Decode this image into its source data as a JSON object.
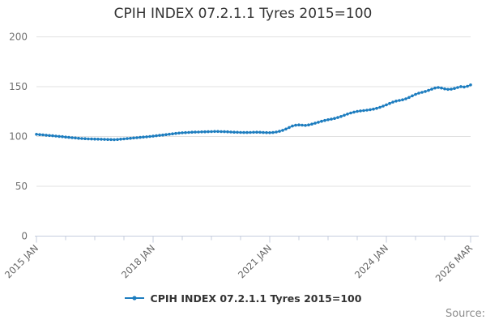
{
  "title": "CPIH INDEX 07.2.1.1 Tyres 2015=100",
  "legend": {
    "label": "CPIH INDEX 07.2.1.1 Tyres 2015=100"
  },
  "source_label": "Source:",
  "colors": {
    "line": "#1d7dbf",
    "grid": "#e0e0e0",
    "axis": "#c5cede",
    "y_tick_label": "#707070",
    "x_tick_label": "#666666",
    "title_text": "#333333",
    "source_text": "#8c8c8c"
  },
  "chart_data": {
    "type": "line",
    "title": "CPIH INDEX 07.2.1.1 Tyres 2015=100",
    "frequency": "monthly",
    "x_start": "2015 JAN",
    "x_end": "2026 MAR",
    "ylim": [
      0,
      200
    ],
    "y_ticks": [
      0,
      50,
      100,
      150,
      200
    ],
    "grid": true,
    "legend_position": "bottom",
    "marker": "dot",
    "x_tick_labels": [
      "2015 JAN",
      "2018 JAN",
      "2021 JAN",
      "2024 JAN",
      "2026 MAR"
    ],
    "x_major_tick_months": [
      0,
      36,
      72,
      108,
      134
    ],
    "x_minor_tick_step_months": 9,
    "series": [
      {
        "name": "CPIH INDEX 07.2.1.1 Tyres 2015=100",
        "values": [
          102.2,
          101.9,
          101.6,
          101.3,
          101,
          100.7,
          100.4,
          100.1,
          99.8,
          99.4,
          99.1,
          98.8,
          98.5,
          98.2,
          98,
          97.8,
          97.6,
          97.5,
          97.4,
          97.3,
          97.2,
          97.1,
          97,
          96.9,
          96.8,
          97,
          97.3,
          97.6,
          97.9,
          98.2,
          98.5,
          98.8,
          99.1,
          99.4,
          99.7,
          100,
          100.3,
          100.7,
          101.1,
          101.5,
          101.9,
          102.3,
          102.7,
          103.1,
          103.4,
          103.7,
          103.9,
          104.1,
          104.3,
          104.4,
          104.5,
          104.6,
          104.7,
          104.8,
          104.9,
          105,
          105,
          104.9,
          104.8,
          104.7,
          104.5,
          104.3,
          104.2,
          104.1,
          104,
          104,
          104.1,
          104.2,
          104.3,
          104.2,
          104,
          103.9,
          103.8,
          104,
          104.5,
          105.2,
          106.2,
          107.5,
          109,
          110.5,
          111.3,
          111.6,
          111.4,
          111.1,
          111.6,
          112.4,
          113.3,
          114.3,
          115.3,
          116.1,
          116.8,
          117.4,
          118.1,
          119,
          120.1,
          121.3,
          122.5,
          123.6,
          124.5,
          125.2,
          125.7,
          126,
          126.4,
          126.9,
          127.5,
          128.3,
          129.3,
          130.5,
          131.8,
          133.2,
          134.5,
          135.5,
          136.2,
          136.8,
          137.8,
          139.2,
          140.8,
          142.3,
          143.5,
          144.3,
          145.2,
          146.3,
          147.5,
          148.6,
          149.2,
          148.6,
          147.8,
          147.3,
          147.5,
          148.2,
          149.2,
          150.1,
          149.7,
          150.4,
          151.8
        ]
      }
    ]
  }
}
